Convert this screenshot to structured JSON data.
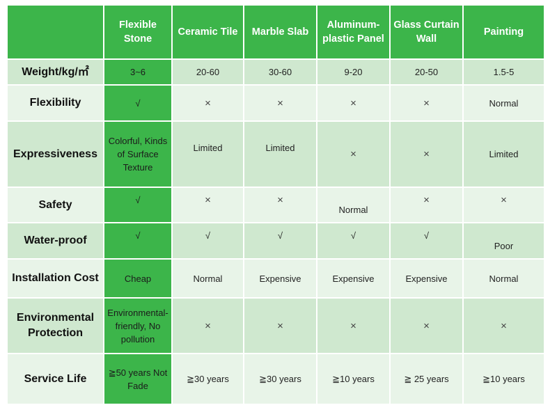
{
  "table": {
    "corner": "",
    "headers": [
      "Flexible Stone",
      "Ceramic Tile",
      "Marble Slab",
      "Aluminum-plastic Panel",
      "Glass Curtain Wall",
      "Painting"
    ],
    "rows": [
      {
        "label": "Weight/kg/㎡",
        "cells": [
          "3~6",
          "20-60",
          "30-60",
          "9-20",
          "20-50",
          "1.5-5"
        ]
      },
      {
        "label": "Flexibility",
        "cells": [
          "√",
          "×",
          "×",
          "×",
          "×",
          "Normal"
        ]
      },
      {
        "label": "Expressiveness",
        "cells": [
          "Colorful, Kinds of Surface Texture",
          "Limited",
          "Limited",
          "×",
          "×",
          "Limited"
        ]
      },
      {
        "label": "Safety",
        "cells": [
          "√",
          "×",
          "×",
          "Normal",
          "×",
          "×"
        ]
      },
      {
        "label": "Water-proof",
        "cells": [
          "√",
          "√",
          "√",
          "√",
          "√",
          "Poor"
        ]
      },
      {
        "label": "Installation Cost",
        "cells": [
          "Cheap",
          "Normal",
          "Expensive",
          "Expensive",
          "Expensive",
          "Normal"
        ]
      },
      {
        "label": "Environmental Protection",
        "cells": [
          "Environmental-friendly, No pollution",
          "×",
          "×",
          "×",
          "×",
          "×"
        ]
      },
      {
        "label": "Service Life",
        "cells": [
          "≧50 years Not Fade",
          "≧30 years",
          "≧30 years",
          "≧10 years",
          "≧ 25 years",
          "≧10 years"
        ]
      }
    ]
  },
  "colors": {
    "header_green": "#3cb54a",
    "row_dark": "#cfe8cf",
    "row_light": "#e8f4e8"
  }
}
